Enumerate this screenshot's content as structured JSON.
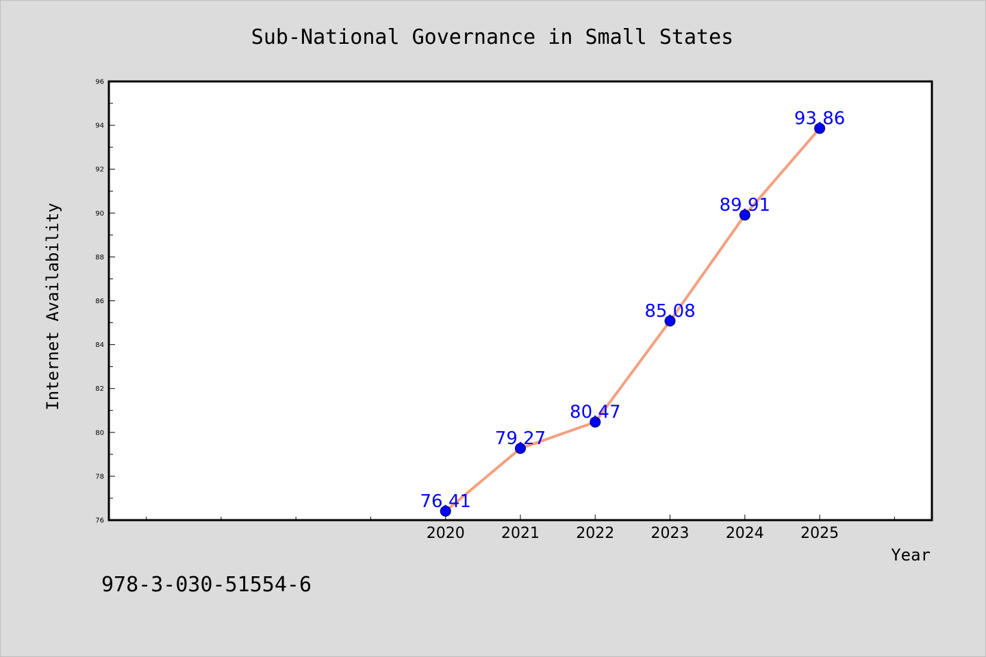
{
  "chart_data": {
    "type": "line",
    "title": "Sub-National Governance in Small States",
    "xlabel": "Year",
    "ylabel": "Internet Availability",
    "x": [
      2020,
      2021,
      2022,
      2023,
      2024,
      2025
    ],
    "series": [
      {
        "values": [
          76.41,
          79.27,
          80.47,
          85.08,
          89.91,
          93.86
        ],
        "labels": [
          "76.41",
          "79.27",
          "80.47",
          "85.08",
          "89.91",
          "93.86"
        ]
      }
    ],
    "xlim": [
      2015.5,
      2026.5
    ],
    "ylim": [
      76,
      96
    ],
    "yticks": [
      "76",
      "78",
      "80",
      "82",
      "84",
      "86",
      "88",
      "90",
      "92",
      "94",
      "96"
    ],
    "xticks": [
      "2020",
      "2021",
      "2022",
      "2023",
      "2024",
      "2025"
    ],
    "line_color": "#f4a07f",
    "marker_color": "#0000ff",
    "label_color": "#0000ff",
    "grid": false,
    "legend": "none"
  },
  "footer": {
    "isbn": "978-3-030-51554-6"
  }
}
